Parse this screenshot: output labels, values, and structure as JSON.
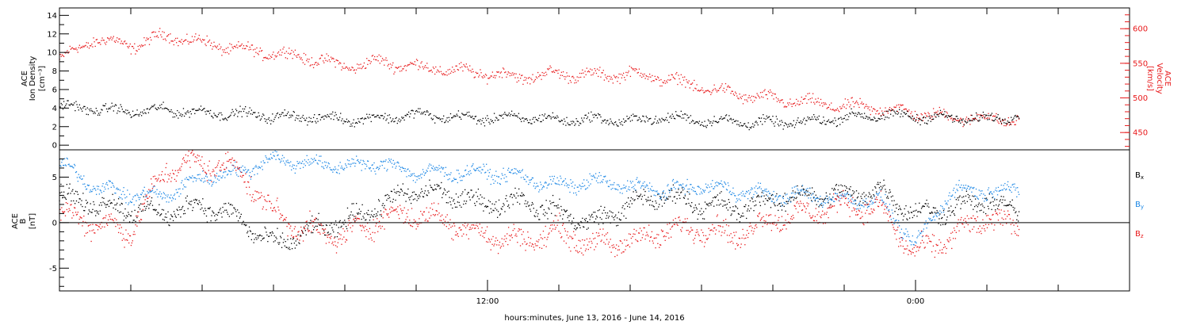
{
  "figure": {
    "xlabel": "hours:minutes, June 13, 2016 - June 14, 2016",
    "x_tick_labels": [
      {
        "hour": 12,
        "label": "12:00"
      },
      {
        "hour": 24,
        "label": "0:00"
      }
    ],
    "x_range_hours": [
      0.0,
      30.0
    ],
    "minor_tick_every_hours": 2,
    "data_end_hour": 26.9
  },
  "chart_data": [
    {
      "type": "scatter",
      "panel": "top",
      "ylabel_left": [
        "ACE",
        "Ion Density",
        "[cm⁻³]"
      ],
      "ylabel_right": [
        "ACE",
        "Velocity",
        "[km/s]"
      ],
      "ylim_left": [
        -0.5,
        14.8
      ],
      "yticks_left": [
        0,
        2,
        4,
        6,
        8,
        10,
        12,
        14
      ],
      "ylim_right": [
        425,
        630
      ],
      "yticks_right": [
        450,
        500,
        550,
        600
      ],
      "right_axis_color": "#e8191b",
      "series": [
        {
          "axis": "left",
          "color": "#000000",
          "x_hours": [
            0.0,
            1.0,
            2.0,
            3.0,
            4.0,
            5.0,
            6.0,
            7.0,
            8.0,
            9.0,
            10.0,
            11.0,
            12.0,
            13.0,
            14.0,
            15.0,
            16.0,
            17.0,
            18.0,
            19.0,
            20.0,
            21.0,
            22.0,
            23.0,
            24.0,
            25.0,
            26.0,
            26.9
          ],
          "values": [
            4.2,
            3.9,
            3.6,
            3.8,
            3.5,
            3.4,
            3.1,
            3.0,
            2.8,
            2.9,
            3.3,
            3.0,
            2.9,
            3.0,
            2.7,
            2.8,
            2.6,
            3.0,
            2.7,
            2.5,
            2.4,
            2.5,
            3.0,
            3.2,
            3.1,
            2.9,
            2.8,
            3.3
          ],
          "noise": 0.7
        },
        {
          "axis": "right",
          "color": "#e8191b",
          "x_hours": [
            0.0,
            1.0,
            2.0,
            3.0,
            4.0,
            5.0,
            6.0,
            7.0,
            8.0,
            9.0,
            10.0,
            11.0,
            12.0,
            13.0,
            14.0,
            15.0,
            16.0,
            17.0,
            18.0,
            19.0,
            20.0,
            21.0,
            22.0,
            23.0,
            24.0,
            25.0,
            26.0,
            26.9
          ],
          "values": [
            555,
            585,
            575,
            590,
            580,
            570,
            565,
            558,
            545,
            552,
            545,
            540,
            535,
            530,
            535,
            532,
            535,
            528,
            515,
            505,
            498,
            493,
            488,
            485,
            478,
            472,
            470,
            468
          ],
          "noise": 11
        }
      ]
    },
    {
      "type": "scatter",
      "panel": "bottom",
      "ylabel": [
        "ACE",
        "B",
        "[nT]"
      ],
      "ylim": [
        -7.5,
        8.0
      ],
      "yticks": [
        -5,
        0,
        5
      ],
      "zero_line": true,
      "legend": [
        {
          "label": "B",
          "sub": "x",
          "color": "#000000"
        },
        {
          "label": "B",
          "sub": "y",
          "color": "#1e88e5"
        },
        {
          "label": "B",
          "sub": "z",
          "color": "#e8191b"
        }
      ],
      "series": [
        {
          "name": "Bx",
          "color": "#000000",
          "x_hours": [
            0.0,
            1.0,
            2.0,
            3.0,
            4.0,
            5.0,
            6.0,
            7.0,
            8.0,
            9.0,
            10.0,
            11.0,
            12.0,
            13.0,
            14.0,
            15.0,
            16.0,
            17.0,
            18.0,
            19.0,
            20.0,
            21.0,
            22.0,
            23.0,
            24.0,
            25.0,
            26.0,
            26.9
          ],
          "values": [
            3.0,
            2.0,
            1.5,
            1.0,
            2.0,
            0.5,
            -2.5,
            -1.0,
            0.0,
            2.0,
            3.5,
            3.0,
            2.0,
            2.5,
            1.0,
            0.0,
            2.0,
            3.0,
            2.0,
            1.5,
            2.5,
            3.0,
            3.0,
            3.5,
            1.0,
            1.5,
            2.5,
            1.0
          ],
          "noise": 1.4
        },
        {
          "name": "By",
          "color": "#1e88e5",
          "x_hours": [
            0.0,
            1.0,
            2.0,
            3.0,
            4.0,
            5.0,
            6.0,
            7.0,
            8.0,
            9.0,
            10.0,
            11.0,
            12.0,
            13.0,
            14.0,
            15.0,
            16.0,
            17.0,
            18.0,
            19.0,
            20.0,
            21.0,
            22.0,
            23.0,
            24.0,
            25.0,
            26.0,
            26.9
          ],
          "values": [
            6.5,
            4.0,
            3.0,
            3.0,
            5.0,
            5.5,
            7.0,
            6.5,
            6.2,
            6.5,
            5.5,
            5.5,
            5.5,
            5.0,
            4.0,
            4.5,
            4.0,
            3.5,
            4.0,
            3.5,
            3.0,
            3.0,
            2.5,
            2.5,
            -2.5,
            3.5,
            3.5,
            3.5
          ],
          "noise": 1.0
        },
        {
          "name": "Bz",
          "color": "#e8191b",
          "x_hours": [
            0.0,
            1.0,
            2.0,
            3.0,
            4.0,
            5.0,
            6.0,
            7.0,
            8.0,
            9.0,
            10.0,
            11.0,
            12.0,
            13.0,
            14.0,
            15.0,
            16.0,
            17.0,
            18.0,
            19.0,
            20.0,
            21.0,
            22.0,
            23.0,
            24.0,
            25.0,
            26.0,
            26.9
          ],
          "values": [
            1.0,
            0.0,
            -1.0,
            6.0,
            6.5,
            6.0,
            1.0,
            -1.0,
            -1.5,
            0.5,
            1.0,
            0.0,
            -1.5,
            -2.0,
            -1.0,
            -2.5,
            -2.0,
            -1.0,
            -0.5,
            -1.5,
            0.5,
            1.0,
            2.0,
            1.5,
            -3.5,
            -1.5,
            0.5,
            -0.5
          ],
          "noise": 1.6
        }
      ]
    }
  ]
}
